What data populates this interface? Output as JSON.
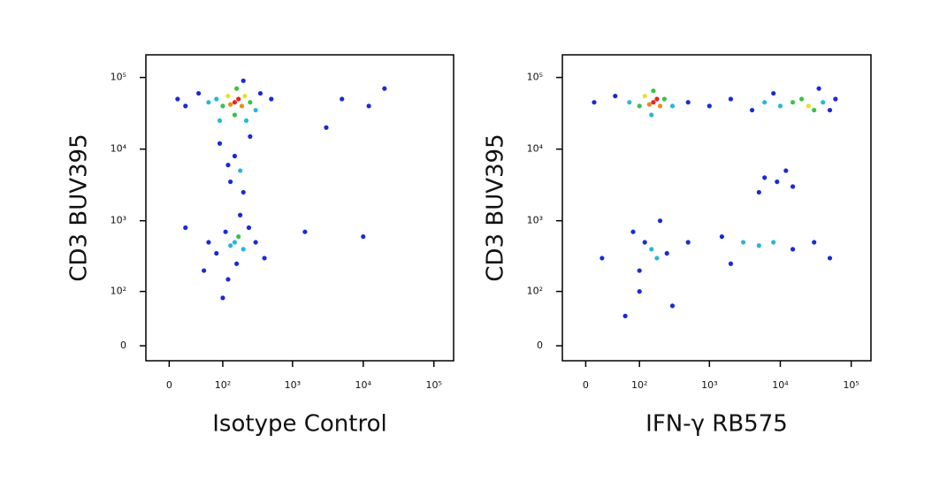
{
  "chart_data": [
    {
      "type": "scatter",
      "xlabel": "Isotype Control",
      "ylabel": "CD3 BUV395",
      "xscale": "logicle",
      "yscale": "logicle",
      "xlim": [
        -30,
        190000
      ],
      "ylim": [
        -18,
        207000
      ],
      "xticks": [
        0,
        {
          "value": 100,
          "label": "10²"
        },
        {
          "value": 1000,
          "label": "10³"
        },
        {
          "value": 10000,
          "label": "10⁴"
        },
        {
          "value": 100000,
          "label": "10⁵"
        }
      ],
      "yticks": [
        0,
        {
          "value": 100,
          "label": "10²"
        },
        {
          "value": 1000,
          "label": "10³"
        },
        {
          "value": 10000,
          "label": "10⁴"
        },
        {
          "value": 100000,
          "label": "10⁵"
        }
      ],
      "x": [
        150,
        170,
        130,
        190,
        120,
        210,
        100,
        250,
        160,
        150,
        80,
        300,
        60,
        40,
        20,
        10,
        350,
        200,
        90,
        220,
        500,
        5000,
        12000,
        20000,
        3000,
        150,
        180,
        130,
        200,
        120,
        90,
        250,
        150,
        170,
        130,
        200,
        110,
        240,
        80,
        160,
        120,
        60,
        300,
        180,
        50,
        100,
        20,
        400,
        10000,
        1500
      ],
      "y": [
        45000,
        50000,
        42000,
        40000,
        55000,
        55000,
        40000,
        45000,
        70000,
        30000,
        50000,
        35000,
        45000,
        60000,
        40000,
        50000,
        60000,
        90000,
        25000,
        25000,
        50000,
        50000,
        40000,
        70000,
        20000,
        8000,
        5000,
        3500,
        2500,
        6000,
        12000,
        15000,
        500,
        600,
        450,
        400,
        700,
        800,
        350,
        250,
        150,
        500,
        500,
        1200,
        200,
        80,
        800,
        300,
        600,
        700
      ],
      "colors": [
        "#e8251a",
        "#e8251a",
        "#f08a1c",
        "#f08a1c",
        "#e6e22a",
        "#e6e22a",
        "#39c24a",
        "#39c24a",
        "#39c24a",
        "#39c24a",
        "#2ab7d6",
        "#2ab7d6",
        "#2ab7d6",
        "#1a2ad8",
        "#1a2ad8",
        "#1a2ad8",
        "#1a2ad8",
        "#1a2ad8",
        "#2ab7d6",
        "#2ab7d6",
        "#1a2ad8",
        "#1a2ad8",
        "#1a2ad8",
        "#1a2ad8",
        "#1a2ad8",
        "#1a2ad8",
        "#2ab7d6",
        "#1a2ad8",
        "#1a2ad8",
        "#1a2ad8",
        "#1a2ad8",
        "#1a2ad8",
        "#2ab7d6",
        "#39c24a",
        "#2ab7d6",
        "#2ab7d6",
        "#1a2ad8",
        "#1a2ad8",
        "#1a2ad8",
        "#1a2ad8",
        "#1a2ad8",
        "#1a2ad8",
        "#1a2ad8",
        "#1a2ad8",
        "#1a2ad8",
        "#1a2ad8",
        "#1a2ad8",
        "#1a2ad8",
        "#1a2ad8",
        "#1a2ad8"
      ]
    },
    {
      "type": "scatter",
      "xlabel": "IFN-γ RB575",
      "ylabel": "CD3 BUV395",
      "xscale": "logicle",
      "yscale": "logicle",
      "xlim": [
        -30,
        190000
      ],
      "ylim": [
        -18,
        207000
      ],
      "xticks": [
        0,
        {
          "value": 100,
          "label": "10²"
        },
        {
          "value": 1000,
          "label": "10³"
        },
        {
          "value": 10000,
          "label": "10⁴"
        },
        {
          "value": 100000,
          "label": "10⁵"
        }
      ],
      "yticks": [
        0,
        {
          "value": 100,
          "label": "10²"
        },
        {
          "value": 1000,
          "label": "10³"
        },
        {
          "value": 10000,
          "label": "10⁴"
        },
        {
          "value": 100000,
          "label": "10⁵"
        }
      ],
      "x": [
        160,
        180,
        140,
        200,
        120,
        230,
        100,
        160,
        150,
        70,
        300,
        40,
        10,
        500,
        1000,
        2000,
        4000,
        6000,
        10000,
        15000,
        25000,
        30000,
        20000,
        40000,
        50000,
        60000,
        8000,
        35000,
        6000,
        9000,
        12000,
        5000,
        15000,
        150,
        180,
        120,
        250,
        100,
        80,
        200,
        500,
        1500,
        3000,
        5000,
        8000,
        15000,
        30000,
        50000,
        2000,
        100,
        60,
        300,
        20
      ],
      "y": [
        45000,
        50000,
        42000,
        40000,
        55000,
        50000,
        40000,
        65000,
        30000,
        45000,
        40000,
        55000,
        45000,
        45000,
        40000,
        50000,
        35000,
        45000,
        40000,
        45000,
        40000,
        35000,
        50000,
        45000,
        35000,
        50000,
        60000,
        70000,
        4000,
        3500,
        5000,
        2500,
        3000,
        400,
        300,
        500,
        350,
        200,
        700,
        1000,
        500,
        600,
        500,
        450,
        500,
        400,
        500,
        300,
        250,
        100,
        40,
        60,
        300
      ],
      "colors": [
        "#e8251a",
        "#e8251a",
        "#f08a1c",
        "#f08a1c",
        "#e6e22a",
        "#39c24a",
        "#39c24a",
        "#39c24a",
        "#2ab7d6",
        "#2ab7d6",
        "#2ab7d6",
        "#1a2ad8",
        "#1a2ad8",
        "#1a2ad8",
        "#1a2ad8",
        "#1a2ad8",
        "#1a2ad8",
        "#2ab7d6",
        "#2ab7d6",
        "#39c24a",
        "#e6e22a",
        "#39c24a",
        "#39c24a",
        "#2ab7d6",
        "#1a2ad8",
        "#1a2ad8",
        "#1a2ad8",
        "#1a2ad8",
        "#1a2ad8",
        "#1a2ad8",
        "#1a2ad8",
        "#1a2ad8",
        "#1a2ad8",
        "#2ab7d6",
        "#2ab7d6",
        "#1a2ad8",
        "#1a2ad8",
        "#1a2ad8",
        "#1a2ad8",
        "#1a2ad8",
        "#1a2ad8",
        "#1a2ad8",
        "#2ab7d6",
        "#2ab7d6",
        "#2ab7d6",
        "#1a2ad8",
        "#1a2ad8",
        "#1a2ad8",
        "#1a2ad8",
        "#1a2ad8",
        "#1a2ad8",
        "#1a2ad8",
        "#1a2ad8"
      ]
    }
  ]
}
